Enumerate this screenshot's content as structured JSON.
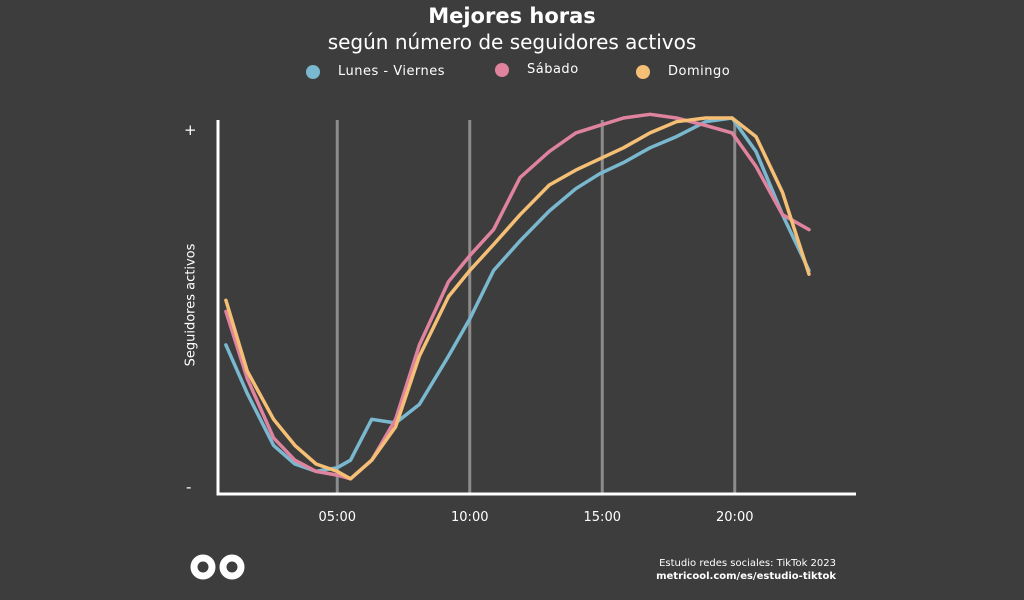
{
  "chart_data": {
    "type": "line",
    "title": "Mejores horas",
    "subtitle": "según número de seguidores activos",
    "ylabel": "Seguidores activos",
    "y_ticks": {
      "top": "+",
      "bottom": "-"
    },
    "ylim": [
      0,
      100
    ],
    "xlim": [
      0,
      24
    ],
    "x_tick_values": [
      5,
      10,
      15,
      20
    ],
    "x_tick_labels": [
      "05:00",
      "10:00",
      "15:00",
      "20:00"
    ],
    "grid": "vertical",
    "legend_position": "top",
    "x": [
      0.8,
      1.6,
      2.6,
      3.4,
      4.2,
      5,
      5.5,
      6.3,
      7.2,
      8.1,
      9.2,
      10,
      10.9,
      11.9,
      13,
      14,
      14.9,
      15.8,
      16.8,
      17.8,
      18.9,
      19.9,
      20.8,
      21.8,
      22.8
    ],
    "series": [
      {
        "name": "Lunes - Viernes",
        "color": "#7ab8d0",
        "values": [
          39,
          26,
          12,
          7,
          5,
          6,
          8,
          19,
          18,
          23,
          36,
          46,
          59,
          67,
          75,
          81,
          85,
          88,
          92,
          95,
          99,
          100,
          91,
          74,
          59
        ]
      },
      {
        "name": "Sábado",
        "color": "#e0839f",
        "values": [
          48,
          30,
          14,
          8,
          5,
          4,
          3,
          8,
          19,
          39,
          56,
          63,
          70,
          84,
          91,
          96,
          98,
          100,
          101,
          100,
          98,
          96,
          87,
          74,
          70
        ]
      },
      {
        "name": "Domingo",
        "color": "#f5bf75",
        "values": [
          51,
          32,
          19,
          12,
          7,
          5,
          3,
          8,
          17,
          36,
          52,
          59,
          66,
          74,
          82,
          86,
          89,
          92,
          96,
          99,
          100,
          100,
          95,
          80,
          58
        ]
      }
    ]
  },
  "footer": {
    "logo_icon": "metricool-infinity-icon",
    "source_line1": "Estudio redes sociales: TikTok 2023",
    "source_line2": "metricool.com/es/estudio-tiktok"
  }
}
